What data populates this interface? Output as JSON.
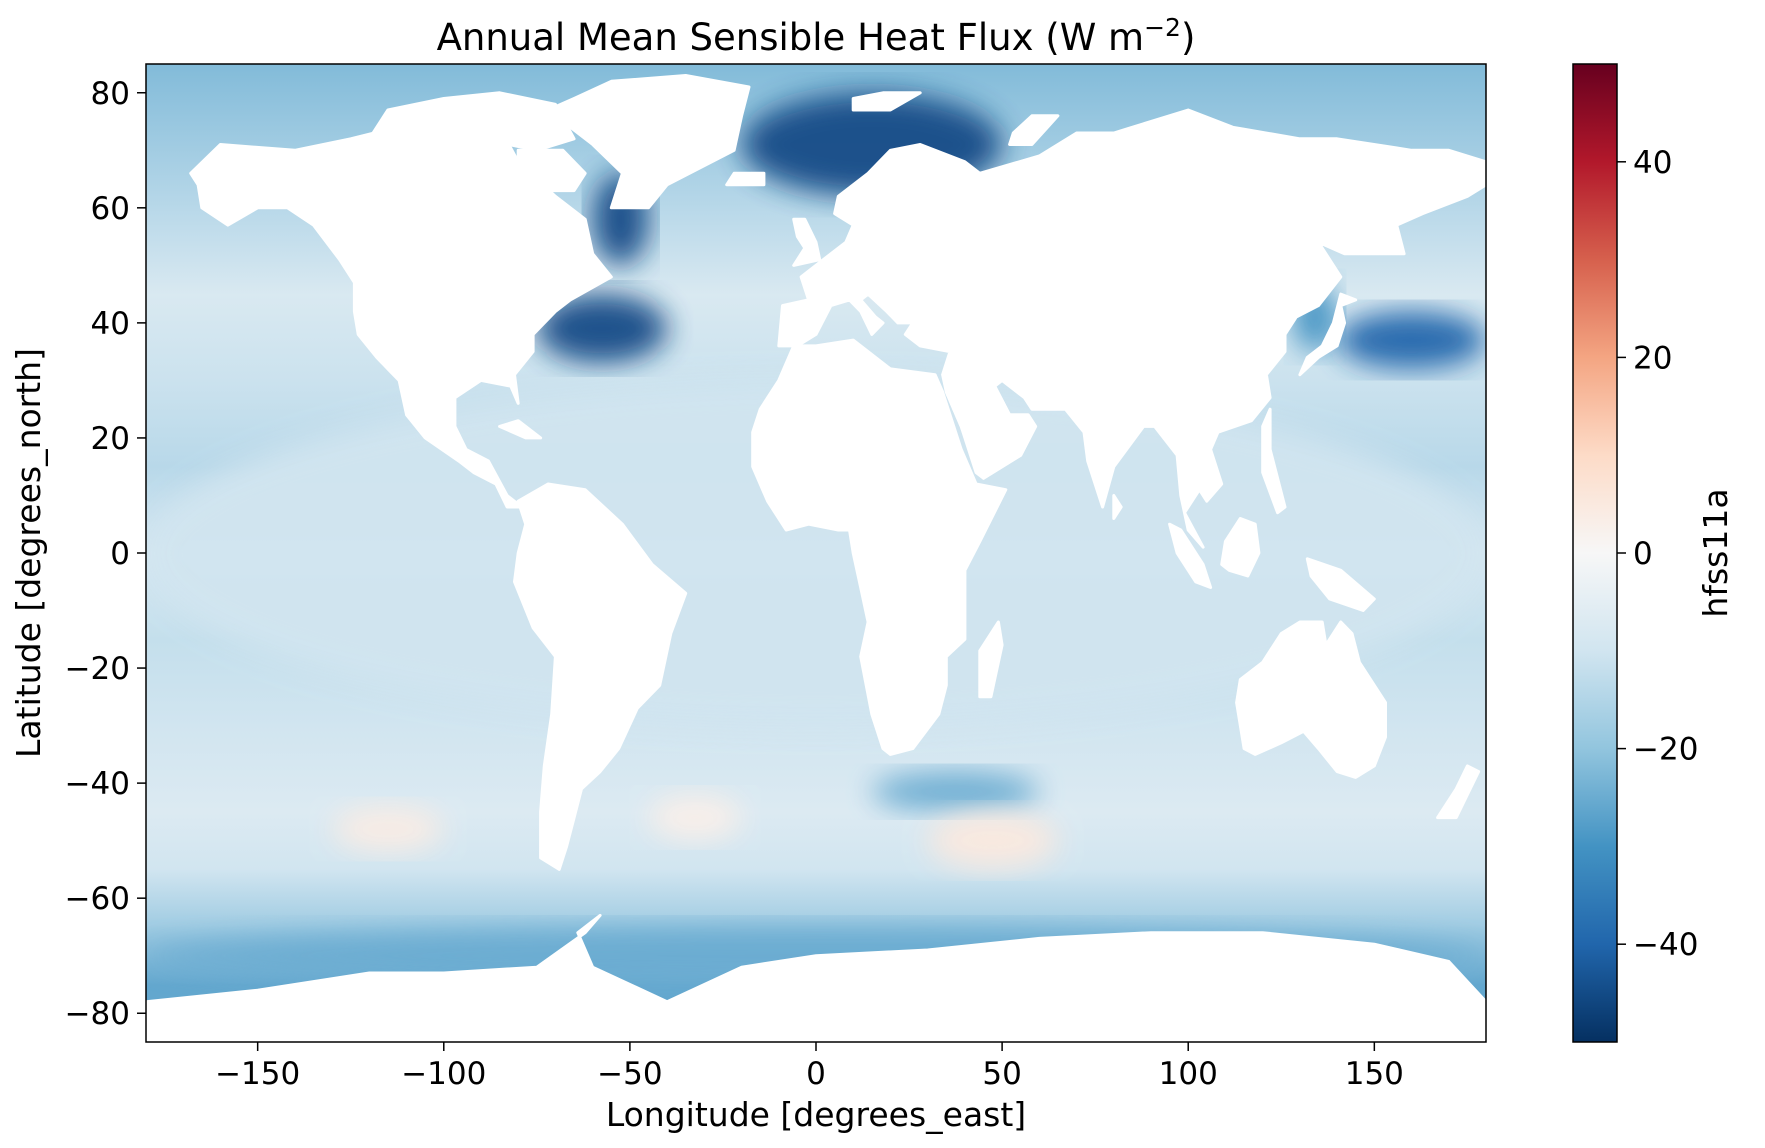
{
  "chart_data": {
    "type": "heatmap",
    "title": "Annual Mean Sensible Heat Flux (W m",
    "title_superscript": "−2",
    "title_close": ")",
    "xlabel": "Longitude [degrees_east]",
    "ylabel": "Latitude [degrees_north]",
    "xlim": [
      -180,
      180
    ],
    "ylim": [
      -85,
      85
    ],
    "xticks": [
      -150,
      -100,
      -50,
      0,
      50,
      100,
      150
    ],
    "xtick_labels": [
      "−150",
      "−100",
      "−50",
      "0",
      "50",
      "100",
      "150"
    ],
    "yticks": [
      80,
      60,
      40,
      20,
      0,
      -20,
      -40,
      -60,
      -80
    ],
    "ytick_labels": [
      "80",
      "60",
      "40",
      "20",
      "0",
      "−20",
      "−40",
      "−60",
      "−80"
    ],
    "grid": false,
    "colormap": "RdBu_r",
    "colormap_stops": [
      "#053061",
      "#2166ac",
      "#4393c3",
      "#92c5de",
      "#d1e5f0",
      "#f7f7f7",
      "#fddbc7",
      "#f4a582",
      "#d6604d",
      "#b2182b",
      "#67001f"
    ],
    "land_color": "#ffffff",
    "colorbar": {
      "label": "hfss11a",
      "vmin": -50,
      "vmax": 50,
      "ticks": [
        40,
        20,
        0,
        -20,
        -40
      ],
      "tick_labels": [
        "40",
        "20",
        "0",
        "−20",
        "−40"
      ]
    },
    "features": [
      {
        "region": "Gulf Stream / North Atlantic Current",
        "lon": [
          -75,
          -40
        ],
        "lat": [
          33,
          45
        ],
        "value": -45
      },
      {
        "region": "Labrador Sea",
        "lon": [
          -60,
          -45
        ],
        "lat": [
          50,
          66
        ],
        "value": -45
      },
      {
        "region": "Nordic / Barents Seas",
        "lon": [
          -20,
          50
        ],
        "lat": [
          62,
          80
        ],
        "value": -45
      },
      {
        "region": "Kuroshio Extension",
        "lon": [
          140,
          180
        ],
        "lat": [
          32,
          42
        ],
        "value": -40
      },
      {
        "region": "Sea of Japan",
        "lon": [
          128,
          140
        ],
        "lat": [
          35,
          47
        ],
        "value": -30
      },
      {
        "region": "Agulhas Return Current",
        "lon": [
          15,
          60
        ],
        "lat": [
          -45,
          -38
        ],
        "value": -25
      },
      {
        "region": "Southern Ocean high-latitude band",
        "lon": [
          -180,
          180
        ],
        "lat": [
          -75,
          -65
        ],
        "value": -25
      },
      {
        "region": "Tropical and subtropical oceans",
        "lon": [
          -180,
          180
        ],
        "lat": [
          -30,
          30
        ],
        "value": -10
      },
      {
        "region": "South Pacific ~50S",
        "lon": [
          -130,
          -100
        ],
        "lat": [
          -52,
          -44
        ],
        "value": 4
      },
      {
        "region": "South Indian ~50S",
        "lon": [
          30,
          65
        ],
        "lat": [
          -55,
          -45
        ],
        "value": 5
      },
      {
        "region": "South Atlantic ~45S",
        "lon": [
          -45,
          -20
        ],
        "lat": [
          -50,
          -42
        ],
        "value": 3
      }
    ]
  }
}
